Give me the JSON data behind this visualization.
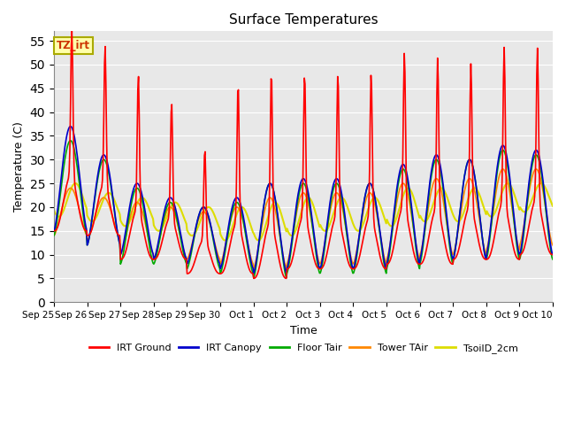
{
  "title": "Surface Temperatures",
  "xlabel": "Time",
  "ylabel": "Temperature (C)",
  "background_color": "#e8e8e8",
  "figure_background": "#ffffff",
  "grid_color": "#ffffff",
  "annotation_text": "TZ_irt",
  "annotation_facecolor": "#ffffaa",
  "annotation_edgecolor": "#aaaa00",
  "legend_entries": [
    "IRT Ground",
    "IRT Canopy",
    "Floor Tair",
    "Tower TAir",
    "TsoilD_2cm"
  ],
  "line_colors": [
    "#ff0000",
    "#0000cc",
    "#00aa00",
    "#ff8800",
    "#dddd00"
  ],
  "line_widths": [
    1.2,
    1.2,
    1.2,
    1.2,
    1.5
  ],
  "x_tick_labels": [
    "Sep 25",
    "Sep 26",
    "Sep 27",
    "Sep 28",
    "Sep 29",
    "Sep 30",
    "Oct 1",
    "Oct 2",
    "Oct 3",
    "Oct 4",
    "Oct 5",
    "Oct 6",
    "Oct 7",
    "Oct 8",
    "Oct 9",
    "Oct 10"
  ],
  "y_ticks": [
    0,
    5,
    10,
    15,
    20,
    25,
    30,
    35,
    40,
    45,
    50,
    55
  ],
  "irt_ground_peaks": [
    53,
    49,
    43,
    38,
    29,
    41,
    43,
    43,
    43,
    43,
    47,
    46,
    45,
    48,
    48
  ],
  "irt_ground_mins": [
    15,
    14,
    9,
    9,
    6,
    6,
    5,
    7,
    7,
    7,
    8,
    8,
    9,
    9,
    10
  ],
  "irt_canopy_peaks": [
    37,
    31,
    25,
    22,
    20,
    22,
    25,
    26,
    26,
    25,
    29,
    31,
    30,
    33,
    32
  ],
  "irt_canopy_mins": [
    15,
    12,
    10,
    9,
    8,
    7,
    6,
    7,
    7,
    7,
    8,
    9,
    9,
    10,
    10
  ],
  "floor_tair_peaks": [
    34,
    30,
    24,
    21,
    20,
    21,
    25,
    25,
    25,
    25,
    28,
    30,
    30,
    32,
    31
  ],
  "floor_tair_mins": [
    14,
    12,
    8,
    8,
    7,
    6,
    5,
    6,
    6,
    6,
    7,
    8,
    9,
    9,
    9
  ],
  "tower_tair_peaks": [
    24,
    22,
    21,
    20,
    19,
    20,
    22,
    23,
    23,
    23,
    25,
    26,
    26,
    28,
    28
  ],
  "tower_tair_mins": [
    14,
    13,
    10,
    9,
    9,
    8,
    7,
    8,
    8,
    8,
    9,
    10,
    10,
    11,
    12
  ],
  "tsoil_peaks": [
    25,
    23,
    22,
    21,
    20,
    20,
    21,
    22,
    22,
    22,
    24,
    24,
    24,
    25,
    25
  ],
  "tsoil_mins": [
    18,
    17,
    16,
    15,
    14,
    13,
    13,
    14,
    15,
    15,
    16,
    17,
    17,
    18,
    19
  ]
}
